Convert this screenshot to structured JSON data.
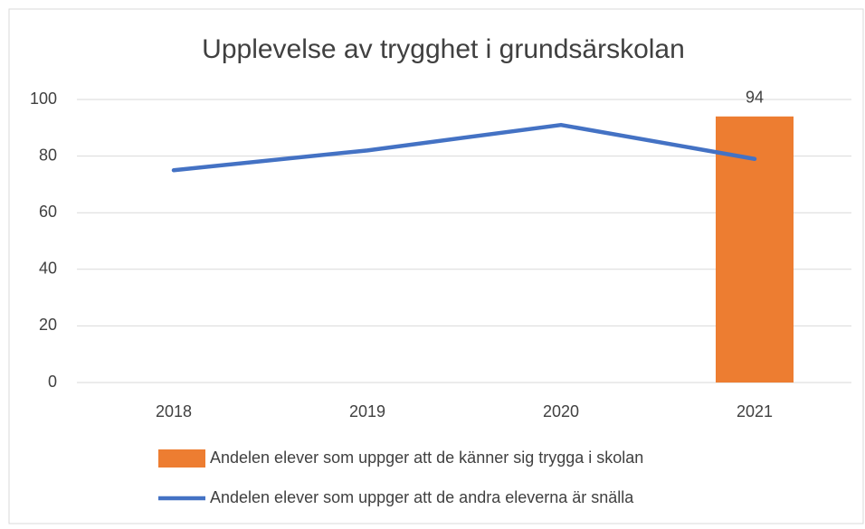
{
  "chart_data": {
    "type": "bar-line",
    "title": "Upplevelse av trygghet i grundsärskolan",
    "categories": [
      "2018",
      "2019",
      "2020",
      "2021"
    ],
    "series": [
      {
        "name": "Andelen elever som uppger att de känner sig trygga i skolan",
        "type": "bar",
        "color": "#ed7d31",
        "values": [
          null,
          null,
          null,
          94
        ]
      },
      {
        "name": "Andelen elever som uppger att de andra eleverna är snälla",
        "type": "line",
        "color": "#4472c4",
        "values": [
          75,
          82,
          91,
          79
        ]
      }
    ],
    "ylim": [
      0,
      100
    ],
    "yticks": [
      0,
      20,
      40,
      60,
      80,
      100
    ],
    "grid": true,
    "legend": "bottom"
  }
}
